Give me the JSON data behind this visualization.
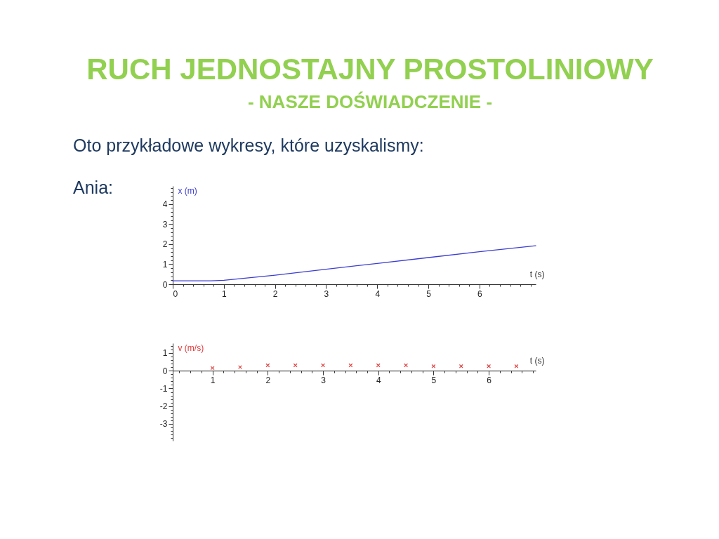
{
  "chart_data": [
    {
      "type": "line",
      "title": "RUCH JEDNOSTAJNY PROSTOLINIOWY",
      "subtitle": "- NASZE DOŚWIADCZENIE -",
      "annotations": [
        "Oto przykładowe wykresy, które uzyskalismy:",
        "Ania:"
      ],
      "xlabel": "t (s)",
      "ylabel": "x (m)",
      "x": [
        0,
        0.75,
        1,
        2,
        3,
        4,
        5,
        6,
        7.1
      ],
      "series": [
        {
          "color": "#3c3cd2",
          "values": [
            0.17,
            0.17,
            0.2,
            0.45,
            0.75,
            1.04,
            1.33,
            1.62,
            1.92
          ]
        }
      ],
      "xlim": [
        0,
        7.1
      ],
      "ylim": [
        0,
        4.9
      ],
      "xticks": [
        0,
        {
          "value": 0.2,
          "label": null
        },
        {
          "value": 0.4,
          "label": null
        },
        {
          "value": 0.6,
          "label": null
        },
        {
          "value": 0.8,
          "label": null
        },
        1,
        {
          "value": 1.2,
          "label": null
        },
        {
          "value": 1.4,
          "label": null
        },
        {
          "value": 1.6,
          "label": null
        },
        {
          "value": 1.8,
          "label": null
        },
        2,
        {
          "value": 2.2,
          "label": null
        },
        {
          "value": 2.4,
          "label": null
        },
        {
          "value": 2.6,
          "label": null
        },
        {
          "value": 2.8,
          "label": null
        },
        3,
        {
          "value": 3.2,
          "label": null
        },
        {
          "value": 3.4,
          "label": null
        },
        {
          "value": 3.6,
          "label": null
        },
        {
          "value": 3.8,
          "label": null
        },
        4,
        {
          "value": 4.2,
          "label": null
        },
        {
          "value": 4.4,
          "label": null
        },
        {
          "value": 4.6,
          "label": null
        },
        {
          "value": 4.8,
          "label": null
        },
        5,
        {
          "value": 5.2,
          "label": null
        },
        {
          "value": 5.4,
          "label": null
        },
        {
          "value": 5.6,
          "label": null
        },
        {
          "value": 5.8,
          "label": null
        },
        6,
        {
          "value": 6.2,
          "label": null
        },
        {
          "value": 6.4,
          "label": null
        },
        {
          "value": 6.6,
          "label": null
        },
        {
          "value": 6.8,
          "label": null
        },
        {
          "value": 7,
          "label": null
        }
      ],
      "yticks": [
        0,
        {
          "value": 0.2,
          "label": null
        },
        {
          "value": 0.4,
          "label": null
        },
        {
          "value": 0.6,
          "label": null
        },
        {
          "value": 0.8,
          "label": null
        },
        1,
        {
          "value": 1.2,
          "label": null
        },
        {
          "value": 1.4,
          "label": null
        },
        {
          "value": 1.6,
          "label": null
        },
        {
          "value": 1.8,
          "label": null
        },
        2,
        {
          "value": 2.2,
          "label": null
        },
        {
          "value": 2.4,
          "label": null
        },
        {
          "value": 2.6,
          "label": null
        },
        {
          "value": 2.8,
          "label": null
        },
        3,
        {
          "value": 3.2,
          "label": null
        },
        {
          "value": 3.4,
          "label": null
        },
        {
          "value": 3.6,
          "label": null
        },
        {
          "value": 3.8,
          "label": null
        },
        4,
        {
          "value": 4.2,
          "label": null
        },
        {
          "value": 4.4,
          "label": null
        },
        {
          "value": 4.6,
          "label": null
        },
        {
          "value": 4.8,
          "label": null
        }
      ]
    },
    {
      "type": "scatter",
      "marker": "cross",
      "xlabel": "t (s)",
      "ylabel": "v (m/s)",
      "x": [
        1,
        1.5,
        2,
        2.5,
        3,
        3.5,
        4,
        4.5,
        5,
        5.5,
        6,
        6.5
      ],
      "series": [
        {
          "color": "#e03c3c",
          "values": [
            0.15,
            0.2,
            0.3,
            0.3,
            0.3,
            0.3,
            0.3,
            0.3,
            0.25,
            0.25,
            0.25,
            0.25
          ]
        }
      ],
      "xlim": [
        0.28,
        6.85
      ],
      "ylim": [
        -3.95,
        1.55
      ],
      "xticks": [
        {
          "value": 0.4,
          "label": null
        },
        {
          "value": 0.6,
          "label": null
        },
        {
          "value": 0.8,
          "label": null
        },
        1,
        {
          "value": 1.2,
          "label": null
        },
        {
          "value": 1.4,
          "label": null
        },
        {
          "value": 1.6,
          "label": null
        },
        {
          "value": 1.8,
          "label": null
        },
        2,
        {
          "value": 2.2,
          "label": null
        },
        {
          "value": 2.4,
          "label": null
        },
        {
          "value": 2.6,
          "label": null
        },
        {
          "value": 2.8,
          "label": null
        },
        3,
        {
          "value": 3.2,
          "label": null
        },
        {
          "value": 3.4,
          "label": null
        },
        {
          "value": 3.6,
          "label": null
        },
        {
          "value": 3.8,
          "label": null
        },
        4,
        {
          "value": 4.2,
          "label": null
        },
        {
          "value": 4.4,
          "label": null
        },
        {
          "value": 4.6,
          "label": null
        },
        {
          "value": 4.8,
          "label": null
        },
        5,
        {
          "value": 5.2,
          "label": null
        },
        {
          "value": 5.4,
          "label": null
        },
        {
          "value": 5.6,
          "label": null
        },
        {
          "value": 5.8,
          "label": null
        },
        6,
        {
          "value": 6.2,
          "label": null
        },
        {
          "value": 6.4,
          "label": null
        },
        {
          "value": 6.6,
          "label": null
        },
        {
          "value": 6.8,
          "label": null
        }
      ],
      "yticks": [
        {
          "value": -3.8,
          "label": null
        },
        {
          "value": -3.6,
          "label": null
        },
        {
          "value": -3.4,
          "label": null
        },
        {
          "value": -3.2,
          "label": null
        },
        -3,
        {
          "value": -2.8,
          "label": null
        },
        {
          "value": -2.6,
          "label": null
        },
        {
          "value": -2.4,
          "label": null
        },
        {
          "value": -2.2,
          "label": null
        },
        -2,
        {
          "value": -1.8,
          "label": null
        },
        {
          "value": -1.6,
          "label": null
        },
        {
          "value": -1.4,
          "label": null
        },
        {
          "value": -1.2,
          "label": null
        },
        -1,
        {
          "value": -0.8,
          "label": null
        },
        {
          "value": -0.6,
          "label": null
        },
        {
          "value": -0.4,
          "label": null
        },
        {
          "value": -0.2,
          "label": null
        },
        0,
        {
          "value": 0.2,
          "label": null
        },
        {
          "value": 0.4,
          "label": null
        },
        {
          "value": 0.6,
          "label": null
        },
        {
          "value": 0.8,
          "label": null
        },
        1,
        {
          "value": 1.2,
          "label": null
        },
        {
          "value": 1.4,
          "label": null
        }
      ]
    }
  ]
}
